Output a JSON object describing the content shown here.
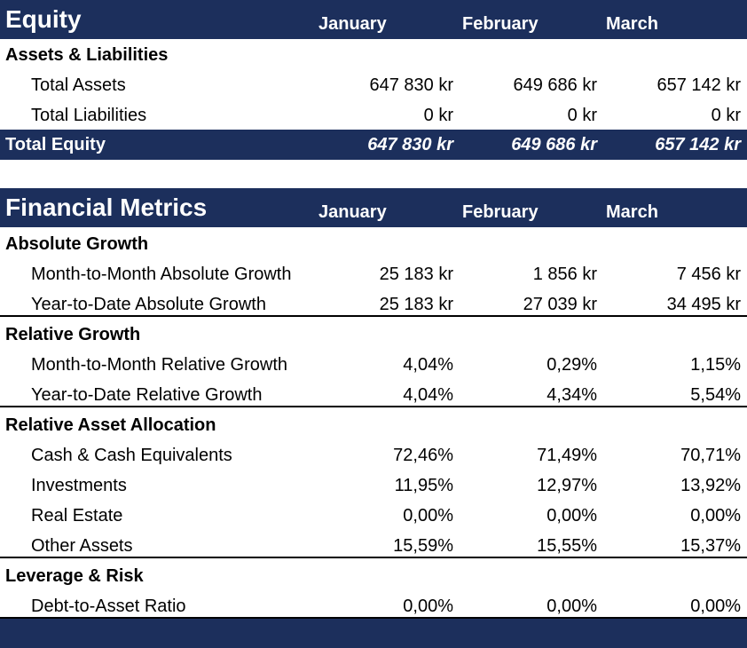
{
  "equity": {
    "title": "Equity",
    "months": [
      "January",
      "February",
      "March"
    ],
    "section": "Assets & Liabilities",
    "rows": [
      {
        "label": "Total Assets",
        "values": [
          "647 830 kr",
          "649 686 kr",
          "657 142 kr"
        ]
      },
      {
        "label": "Total Liabilities",
        "values": [
          "0 kr",
          "0 kr",
          "0 kr"
        ]
      }
    ],
    "total": {
      "label": "Total Equity",
      "values": [
        "647 830 kr",
        "649 686 kr",
        "657 142 kr"
      ]
    }
  },
  "metrics": {
    "title": "Financial Metrics",
    "months": [
      "January",
      "February",
      "March"
    ],
    "sections": [
      {
        "title": "Absolute Growth",
        "rows": [
          {
            "label": "Month-to-Month Absolute Growth",
            "values": [
              "25 183 kr",
              "1 856 kr",
              "7 456 kr"
            ]
          },
          {
            "label": "Year-to-Date Absolute Growth",
            "values": [
              "25 183 kr",
              "27 039 kr",
              "34 495 kr"
            ]
          }
        ]
      },
      {
        "title": "Relative Growth",
        "rows": [
          {
            "label": "Month-to-Month Relative Growth",
            "values": [
              "4,04%",
              "0,29%",
              "1,15%"
            ]
          },
          {
            "label": "Year-to-Date Relative Growth",
            "values": [
              "4,04%",
              "4,34%",
              "5,54%"
            ]
          }
        ]
      },
      {
        "title": "Relative Asset Allocation",
        "rows": [
          {
            "label": "Cash & Cash Equivalents",
            "values": [
              "72,46%",
              "71,49%",
              "70,71%"
            ]
          },
          {
            "label": "Investments",
            "values": [
              "11,95%",
              "12,97%",
              "13,92%"
            ]
          },
          {
            "label": "Real Estate",
            "values": [
              "0,00%",
              "0,00%",
              "0,00%"
            ]
          },
          {
            "label": "Other Assets",
            "values": [
              "15,59%",
              "15,55%",
              "15,37%"
            ]
          }
        ]
      },
      {
        "title": "Leverage & Risk",
        "rows": [
          {
            "label": "Debt-to-Asset Ratio",
            "values": [
              "0,00%",
              "0,00%",
              "0,00%"
            ]
          }
        ]
      }
    ]
  }
}
